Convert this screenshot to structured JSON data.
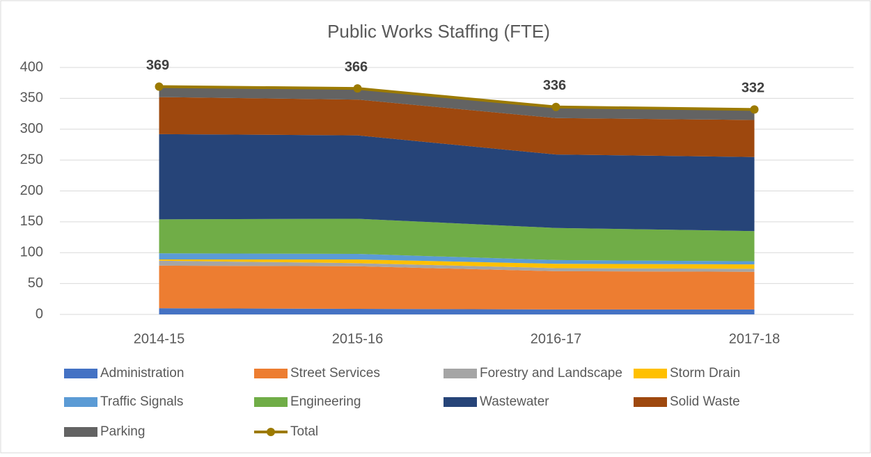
{
  "chart_data": {
    "type": "area",
    "stacked": true,
    "title": "Public Works Staffing (FTE)",
    "categories": [
      "2014-15",
      "2015-16",
      "2016-17",
      "2017-18"
    ],
    "ylim": [
      0,
      400
    ],
    "yticks": [
      0,
      50,
      100,
      150,
      200,
      250,
      300,
      350,
      400
    ],
    "grid": true,
    "legend": "bottom",
    "series": [
      {
        "name": "Administration",
        "color": "#4472c4",
        "values": [
          10,
          9,
          8,
          8
        ]
      },
      {
        "name": "Street Services",
        "color": "#ed7d31",
        "values": [
          69,
          69,
          62,
          61
        ]
      },
      {
        "name": "Forestry and Landscape",
        "color": "#a5a5a5",
        "values": [
          8,
          5,
          5,
          5
        ]
      },
      {
        "name": "Storm Drain",
        "color": "#ffc000",
        "values": [
          2,
          6,
          7,
          7
        ]
      },
      {
        "name": "Traffic Signals",
        "color": "#5b9bd5",
        "values": [
          10,
          9,
          6,
          5
        ]
      },
      {
        "name": "Engineering",
        "color": "#70ad47",
        "values": [
          55,
          57,
          52,
          49
        ]
      },
      {
        "name": "Wastewater",
        "color": "#264478",
        "values": [
          138,
          135,
          119,
          120
        ]
      },
      {
        "name": "Solid Waste",
        "color": "#9e480e",
        "values": [
          60,
          58,
          59,
          60
        ]
      },
      {
        "name": "Parking",
        "color": "#636363",
        "values": [
          17,
          18,
          18,
          17
        ]
      },
      {
        "name": "Total",
        "color": "#9c7a00",
        "type": "line",
        "stacked": false,
        "marker": true,
        "data_labels": true,
        "values": [
          369,
          366,
          336,
          332
        ]
      }
    ]
  }
}
